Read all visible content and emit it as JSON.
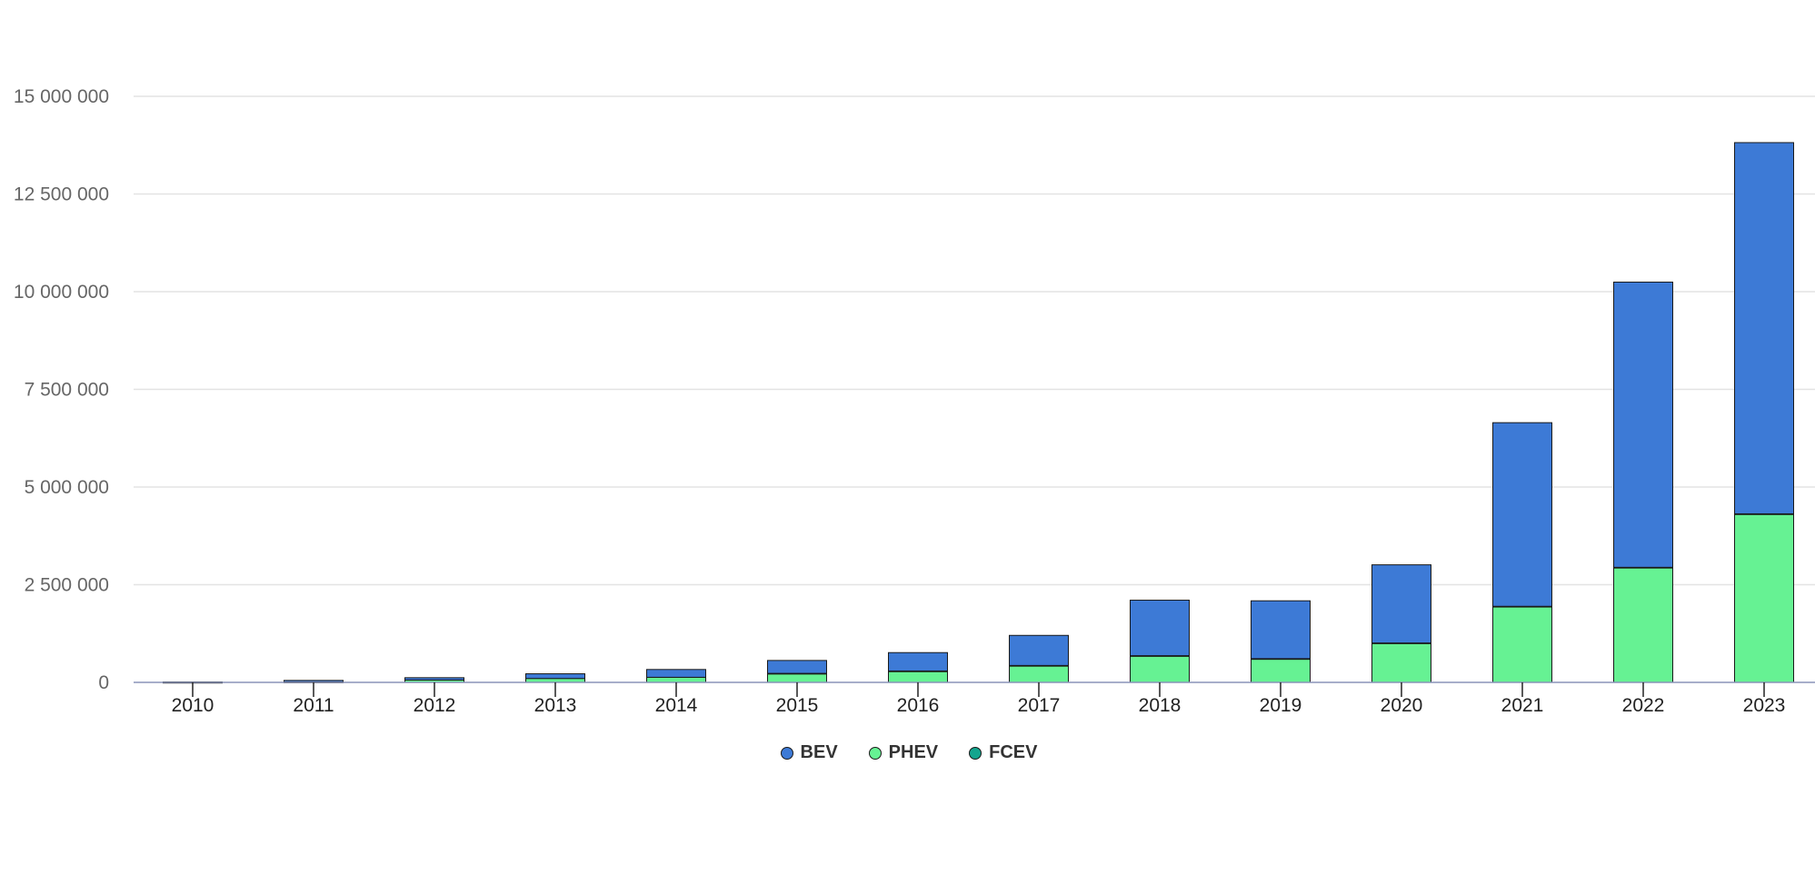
{
  "chart_data": {
    "type": "bar",
    "stacked": true,
    "categories": [
      "2010",
      "2011",
      "2012",
      "2013",
      "2014",
      "2015",
      "2016",
      "2017",
      "2018",
      "2019",
      "2020",
      "2021",
      "2022",
      "2023"
    ],
    "series": [
      {
        "name": "BEV",
        "color": "#3d7ad6",
        "values": [
          10000,
          40000,
          60000,
          120000,
          200000,
          330000,
          470000,
          770000,
          1420000,
          1480000,
          2000000,
          4700000,
          7300000,
          9500000
        ]
      },
      {
        "name": "PHEV",
        "color": "#66f293",
        "values": [
          2000,
          10000,
          60000,
          100000,
          130000,
          230000,
          290000,
          430000,
          680000,
          600000,
          1000000,
          1930000,
          2930000,
          4300000
        ]
      },
      {
        "name": "FCEV",
        "color": "#13a58e",
        "values": [
          0,
          0,
          0,
          0,
          0,
          1000,
          2000,
          3000,
          4000,
          8000,
          9000,
          17000,
          15000,
          15000
        ]
      }
    ],
    "ylim": [
      0,
      15000000
    ],
    "yticks": [
      0,
      2500000,
      5000000,
      7500000,
      10000000,
      12500000,
      15000000
    ],
    "ytick_labels": [
      "0",
      "2 500 000",
      "5 000 000",
      "7 500 000",
      "10 000 000",
      "12 500 000",
      "15 000 000"
    ],
    "grid": true,
    "legend_position": "bottom-center",
    "title": "",
    "xlabel": "",
    "ylabel": ""
  }
}
